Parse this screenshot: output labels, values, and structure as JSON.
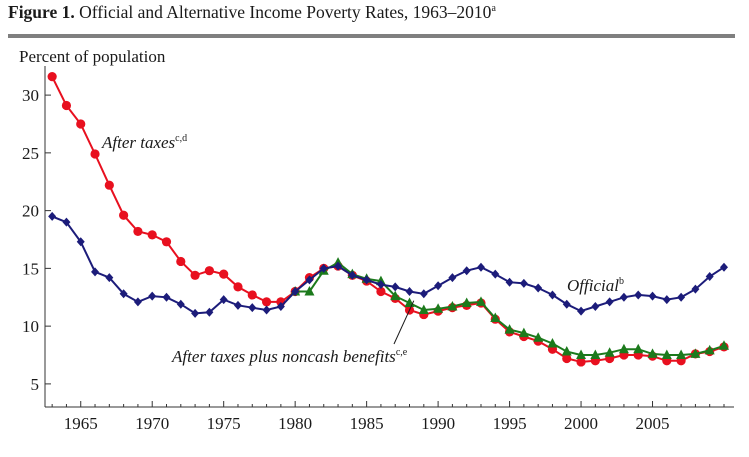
{
  "figure": {
    "label": "Figure 1.",
    "title": "Official and Alternative Income Poverty Rates, 1963–2010",
    "title_note": "a"
  },
  "chart_data": {
    "type": "line",
    "ylabel": "Percent of population",
    "xlabel": "",
    "xlim": [
      1962.5,
      2010.7
    ],
    "ylim": [
      3,
      32
    ],
    "xticks": [
      1965,
      1970,
      1975,
      1980,
      1985,
      1990,
      1995,
      2000,
      2005
    ],
    "yticks": [
      5,
      10,
      15,
      20,
      25,
      30
    ],
    "grid": false,
    "series": [
      {
        "name": "After taxes",
        "note": "c,d",
        "color": "#e8101f",
        "marker": "circle",
        "x": [
          1963,
          1964,
          1965,
          1966,
          1967,
          1968,
          1969,
          1970,
          1971,
          1972,
          1973,
          1974,
          1975,
          1976,
          1977,
          1978,
          1979,
          1980,
          1981,
          1982,
          1983,
          1984,
          1985,
          1986,
          1987,
          1988,
          1989,
          1990,
          1991,
          1992,
          1993,
          1994,
          1995,
          1996,
          1997,
          1998,
          1999,
          2000,
          2001,
          2002,
          2003,
          2004,
          2005,
          2006,
          2007,
          2008,
          2009,
          2010
        ],
        "values": [
          31.6,
          29.1,
          27.5,
          24.9,
          22.2,
          19.6,
          18.2,
          17.9,
          17.3,
          15.6,
          14.4,
          14.8,
          14.5,
          13.4,
          12.7,
          12.1,
          12.1,
          13.0,
          14.2,
          15.0,
          15.2,
          14.4,
          13.9,
          13.0,
          12.4,
          11.4,
          11.0,
          11.3,
          11.6,
          11.8,
          12.0,
          10.6,
          9.5,
          9.1,
          8.7,
          8.0,
          7.2,
          6.9,
          7.0,
          7.2,
          7.5,
          7.5,
          7.4,
          7.0,
          7.0,
          7.6,
          7.8,
          8.2
        ]
      },
      {
        "name": "After taxes plus noncash benefits",
        "note": "c,e",
        "color": "#1c7a1c",
        "marker": "triangle",
        "x": [
          1980,
          1981,
          1982,
          1983,
          1984,
          1985,
          1986,
          1987,
          1988,
          1989,
          1990,
          1991,
          1992,
          1993,
          1994,
          1995,
          1996,
          1997,
          1998,
          1999,
          2000,
          2001,
          2002,
          2003,
          2004,
          2005,
          2006,
          2007,
          2008,
          2009,
          2010
        ],
        "values": [
          13.0,
          13.0,
          14.8,
          15.5,
          14.5,
          14.1,
          13.9,
          12.6,
          12.0,
          11.4,
          11.5,
          11.7,
          12.0,
          12.1,
          10.7,
          9.7,
          9.4,
          9.0,
          8.5,
          7.8,
          7.5,
          7.5,
          7.7,
          8.0,
          8.0,
          7.6,
          7.5,
          7.5,
          7.6,
          7.9,
          8.3
        ]
      },
      {
        "name": "Official",
        "note": "b",
        "color": "#1c1c7a",
        "marker": "diamond",
        "x": [
          1963,
          1964,
          1965,
          1966,
          1967,
          1968,
          1969,
          1970,
          1971,
          1972,
          1973,
          1974,
          1975,
          1976,
          1977,
          1978,
          1979,
          1980,
          1981,
          1982,
          1983,
          1984,
          1985,
          1986,
          1987,
          1988,
          1989,
          1990,
          1991,
          1992,
          1993,
          1994,
          1995,
          1996,
          1997,
          1998,
          1999,
          2000,
          2001,
          2002,
          2003,
          2004,
          2005,
          2006,
          2007,
          2008,
          2009,
          2010
        ],
        "values": [
          19.5,
          19.0,
          17.3,
          14.7,
          14.2,
          12.8,
          12.1,
          12.6,
          12.5,
          11.9,
          11.1,
          11.2,
          12.3,
          11.8,
          11.6,
          11.4,
          11.7,
          13.0,
          14.0,
          15.0,
          15.2,
          14.4,
          14.0,
          13.6,
          13.4,
          13.0,
          12.8,
          13.5,
          14.2,
          14.8,
          15.1,
          14.5,
          13.8,
          13.7,
          13.3,
          12.7,
          11.9,
          11.3,
          11.7,
          12.1,
          12.5,
          12.7,
          12.6,
          12.3,
          12.5,
          13.2,
          14.3,
          15.1
        ]
      }
    ],
    "annotations": [
      {
        "text": "After taxes",
        "note": "c,d",
        "series": "After taxes"
      },
      {
        "text": "Official",
        "note": "b",
        "series": "Official"
      },
      {
        "text": "After taxes plus noncash benefits",
        "note": "c,e",
        "series": "After taxes plus noncash benefits",
        "pointer_x": 1988.3,
        "pointer_y": 12.2
      }
    ]
  }
}
